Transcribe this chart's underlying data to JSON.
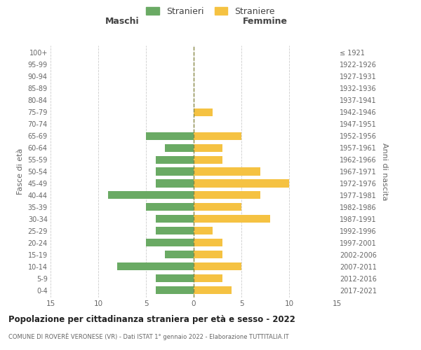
{
  "age_groups": [
    "0-4",
    "5-9",
    "10-14",
    "15-19",
    "20-24",
    "25-29",
    "30-34",
    "35-39",
    "40-44",
    "45-49",
    "50-54",
    "55-59",
    "60-64",
    "65-69",
    "70-74",
    "75-79",
    "80-84",
    "85-89",
    "90-94",
    "95-99",
    "100+"
  ],
  "birth_years": [
    "2017-2021",
    "2012-2016",
    "2007-2011",
    "2002-2006",
    "1997-2001",
    "1992-1996",
    "1987-1991",
    "1982-1986",
    "1977-1981",
    "1972-1976",
    "1967-1971",
    "1962-1966",
    "1957-1961",
    "1952-1956",
    "1947-1951",
    "1942-1946",
    "1937-1941",
    "1932-1936",
    "1927-1931",
    "1922-1926",
    "≤ 1921"
  ],
  "males": [
    4,
    4,
    8,
    3,
    5,
    4,
    4,
    5,
    9,
    4,
    4,
    4,
    3,
    5,
    0,
    0,
    0,
    0,
    0,
    0,
    0
  ],
  "females": [
    4,
    3,
    5,
    3,
    3,
    2,
    8,
    5,
    7,
    10,
    7,
    3,
    3,
    5,
    0,
    2,
    0,
    0,
    0,
    0,
    0
  ],
  "male_color": "#6aaa64",
  "female_color": "#f5c242",
  "title": "Popolazione per cittadinanza straniera per età e sesso - 2022",
  "subtitle": "COMUNE DI ROVERÈ VERONESE (VR) - Dati ISTAT 1° gennaio 2022 - Elaborazione TUTTITALIA.IT",
  "legend_male": "Stranieri",
  "legend_female": "Straniere",
  "xlabel_left": "Maschi",
  "xlabel_right": "Femmine",
  "ylabel_left": "Fasce di età",
  "ylabel_right": "Anni di nascita",
  "xlim": 15,
  "background_color": "#ffffff",
  "grid_color": "#cccccc"
}
